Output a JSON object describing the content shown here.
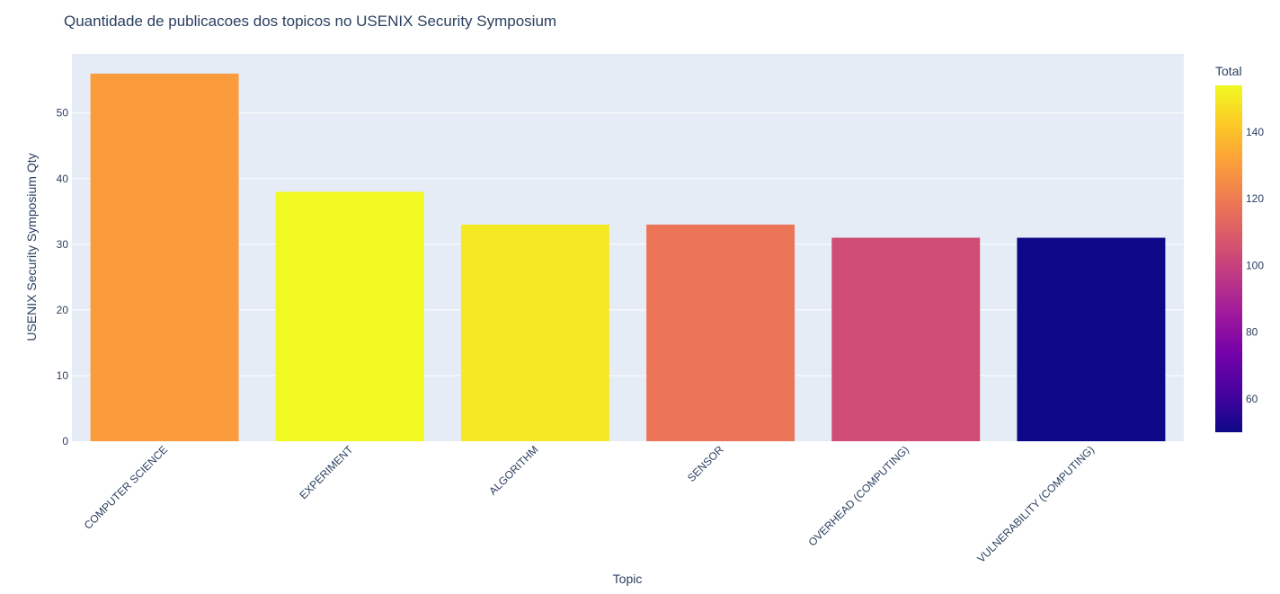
{
  "chart_data": {
    "type": "bar",
    "title": "Quantidade de publicacoes dos topicos no USENIX Security Symposium",
    "xlabel": "Topic",
    "ylabel": "USENIX Security Symposium Qty",
    "categories": [
      "COMPUTER SCIENCE",
      "EXPERIMENT",
      "ALGORITHM",
      "SENSOR",
      "OVERHEAD (COMPUTING)",
      "VULNERABILITY (COMPUTING)"
    ],
    "values": [
      56,
      38,
      33,
      33,
      31,
      31
    ],
    "color_values": [
      130,
      154,
      150,
      118,
      104,
      50
    ],
    "ylim": [
      0,
      59
    ],
    "yticks": [
      0,
      10,
      20,
      30,
      40,
      50
    ],
    "grid": true,
    "colorbar": {
      "title": "Total",
      "range": [
        50,
        154
      ],
      "ticks": [
        60,
        80,
        100,
        120,
        140
      ],
      "colorscale": "plasma"
    },
    "colors": {
      "plot_background": "#e5ecf6",
      "gridline": "#ffffff",
      "text": "#2a3f5f"
    }
  }
}
